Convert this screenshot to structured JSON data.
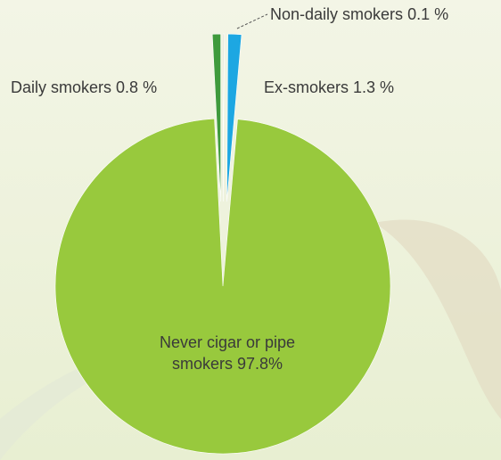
{
  "chart_data": {
    "type": "pie",
    "categories": [
      "Daily smokers",
      "Non-daily smokers",
      "Ex-smokers",
      "Never cigar or pipe smokers"
    ],
    "values": [
      0.8,
      0.1,
      1.3,
      97.8
    ],
    "value_labels": [
      "0.8 %",
      "0.1 %",
      "1.3 %",
      "97.8%"
    ],
    "colors": [
      "#3f9a3c",
      "#c9cbb4",
      "#1da7e2",
      "#98c93d"
    ]
  }
}
